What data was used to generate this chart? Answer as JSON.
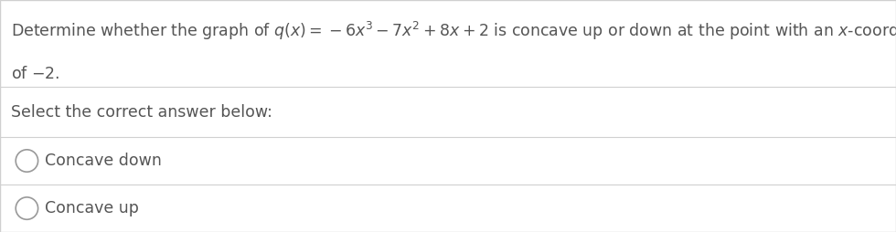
{
  "background_color": "#ffffff",
  "border_color": "#d0d0d0",
  "question_line1": "Determine whether the graph of $q(x) = -6x^3 - 7x^2 + 8x + 2$ is concave up or down at the point with an $x$-coordinate",
  "question_line2": "of $-2$.",
  "prompt": "Select the correct answer below:",
  "options": [
    "Concave down",
    "Concave up"
  ],
  "text_color": "#555555",
  "font_size_question": 12.5,
  "font_size_options": 12.5,
  "divider_color": "#d0d0d0",
  "circle_color": "#999999",
  "figwidth": 9.8,
  "figheight": 2.54,
  "dpi": 100
}
